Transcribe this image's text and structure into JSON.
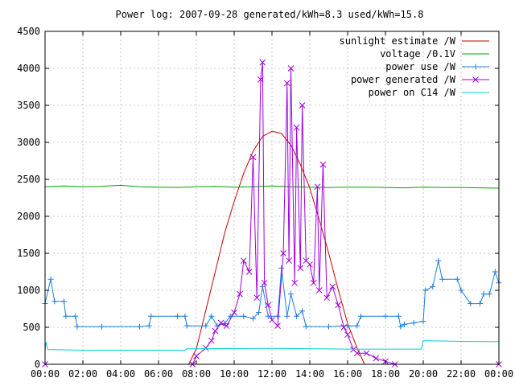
{
  "chart_data": {
    "type": "line",
    "title": "Power log: 2007-09-28 generated/kWh=8.3 used/kWh=15.8",
    "xlabel": "",
    "ylabel": "",
    "xlim": [
      0,
      24
    ],
    "ylim": [
      0,
      4500
    ],
    "x_ticks": [
      "00:00",
      "02:00",
      "04:00",
      "06:00",
      "08:00",
      "10:00",
      "12:00",
      "14:00",
      "16:00",
      "18:00",
      "20:00",
      "22:00",
      "00:00"
    ],
    "y_ticks": [
      0,
      500,
      1000,
      1500,
      2000,
      2500,
      3000,
      3500,
      4000,
      4500
    ],
    "grid": true,
    "legend_position": "top-right",
    "series": [
      {
        "name": "sunlight estimate /W",
        "color": "#cc0000",
        "marker": "none",
        "points": [
          [
            7.6,
            0
          ],
          [
            8.0,
            210
          ],
          [
            8.5,
            730
          ],
          [
            9.0,
            1250
          ],
          [
            9.5,
            1780
          ],
          [
            10.0,
            2200
          ],
          [
            10.5,
            2580
          ],
          [
            11.0,
            2880
          ],
          [
            11.5,
            3080
          ],
          [
            12.0,
            3150
          ],
          [
            12.5,
            3120
          ],
          [
            13.0,
            2960
          ],
          [
            13.5,
            2700
          ],
          [
            14.0,
            2380
          ],
          [
            14.5,
            1950
          ],
          [
            15.0,
            1500
          ],
          [
            15.5,
            1010
          ],
          [
            16.0,
            550
          ],
          [
            16.5,
            220
          ],
          [
            16.9,
            0
          ]
        ]
      },
      {
        "name": "voltage /0.1V",
        "color": "#00a000",
        "marker": "none",
        "points": [
          [
            0,
            2400
          ],
          [
            1,
            2410
          ],
          [
            2,
            2400
          ],
          [
            3,
            2405
          ],
          [
            4,
            2420
          ],
          [
            5,
            2400
          ],
          [
            6,
            2395
          ],
          [
            7,
            2390
          ],
          [
            8,
            2400
          ],
          [
            9,
            2405
          ],
          [
            10,
            2395
          ],
          [
            11,
            2400
          ],
          [
            12,
            2410
          ],
          [
            13,
            2400
          ],
          [
            14,
            2395
          ],
          [
            15,
            2390
          ],
          [
            16,
            2395
          ],
          [
            17,
            2395
          ],
          [
            18,
            2390
          ],
          [
            19,
            2385
          ],
          [
            20,
            2395
          ],
          [
            21,
            2390
          ],
          [
            22,
            2390
          ],
          [
            23,
            2385
          ],
          [
            24,
            2380
          ]
        ]
      },
      {
        "name": "power use /W",
        "color": "#1e7fe0",
        "marker": "plus",
        "points": [
          [
            0,
            820
          ],
          [
            0.3,
            1150
          ],
          [
            0.5,
            850
          ],
          [
            1.0,
            850
          ],
          [
            1.1,
            650
          ],
          [
            1.6,
            650
          ],
          [
            1.7,
            510
          ],
          [
            3.0,
            510
          ],
          [
            5.0,
            510
          ],
          [
            5.5,
            520
          ],
          [
            5.6,
            650
          ],
          [
            7.0,
            650
          ],
          [
            7.4,
            650
          ],
          [
            7.5,
            520
          ],
          [
            8.5,
            520
          ],
          [
            8.8,
            650
          ],
          [
            9.1,
            520
          ],
          [
            9.5,
            550
          ],
          [
            9.8,
            650
          ],
          [
            10.5,
            650
          ],
          [
            11.0,
            620
          ],
          [
            11.3,
            700
          ],
          [
            11.5,
            1050
          ],
          [
            11.8,
            650
          ],
          [
            12.3,
            650
          ],
          [
            12.5,
            1300
          ],
          [
            12.8,
            650
          ],
          [
            13.0,
            950
          ],
          [
            13.3,
            650
          ],
          [
            13.6,
            720
          ],
          [
            13.8,
            510
          ],
          [
            15.0,
            510
          ],
          [
            16.0,
            520
          ],
          [
            16.5,
            520
          ],
          [
            16.7,
            650
          ],
          [
            18.0,
            650
          ],
          [
            18.7,
            650
          ],
          [
            18.8,
            510
          ],
          [
            19.0,
            540
          ],
          [
            19.5,
            560
          ],
          [
            20.0,
            580
          ],
          [
            20.1,
            1000
          ],
          [
            20.5,
            1050
          ],
          [
            20.8,
            1400
          ],
          [
            21.0,
            1150
          ],
          [
            21.8,
            1150
          ],
          [
            22.0,
            1000
          ],
          [
            22.5,
            820
          ],
          [
            23.0,
            820
          ],
          [
            23.2,
            950
          ],
          [
            23.5,
            950
          ],
          [
            23.8,
            1250
          ],
          [
            24,
            1100
          ]
        ]
      },
      {
        "name": "power generated /W",
        "color": "#a000e0",
        "marker": "cross",
        "points": [
          [
            0,
            0
          ],
          [
            7.8,
            0
          ],
          [
            8.0,
            110
          ],
          [
            8.5,
            220
          ],
          [
            8.8,
            320
          ],
          [
            9.0,
            450
          ],
          [
            9.3,
            560
          ],
          [
            9.6,
            520
          ],
          [
            10.0,
            700
          ],
          [
            10.3,
            950
          ],
          [
            10.5,
            1400
          ],
          [
            10.8,
            1250
          ],
          [
            11.0,
            2800
          ],
          [
            11.2,
            900
          ],
          [
            11.4,
            3850
          ],
          [
            11.5,
            4080
          ],
          [
            11.6,
            1100
          ],
          [
            11.8,
            800
          ],
          [
            12.0,
            600
          ],
          [
            12.3,
            520
          ],
          [
            12.6,
            1500
          ],
          [
            12.8,
            3800
          ],
          [
            12.9,
            1400
          ],
          [
            13.0,
            4000
          ],
          [
            13.2,
            1100
          ],
          [
            13.3,
            3200
          ],
          [
            13.5,
            1300
          ],
          [
            13.6,
            3500
          ],
          [
            13.8,
            1400
          ],
          [
            14.0,
            1350
          ],
          [
            14.2,
            1100
          ],
          [
            14.4,
            2400
          ],
          [
            14.5,
            1000
          ],
          [
            14.7,
            2700
          ],
          [
            14.9,
            900
          ],
          [
            15.2,
            1050
          ],
          [
            15.5,
            800
          ],
          [
            15.8,
            500
          ],
          [
            16.0,
            400
          ],
          [
            16.3,
            200
          ],
          [
            16.5,
            150
          ],
          [
            17.0,
            150
          ],
          [
            17.5,
            80
          ],
          [
            18.0,
            40
          ],
          [
            18.5,
            0
          ],
          [
            24,
            0
          ]
        ]
      },
      {
        "name": "power on C14 /W",
        "color": "#00d0d0",
        "marker": "none",
        "points": [
          [
            0,
            180
          ],
          [
            0.05,
            300
          ],
          [
            0.15,
            200
          ],
          [
            2.0,
            190
          ],
          [
            5.0,
            190
          ],
          [
            7.4,
            190
          ],
          [
            7.5,
            210
          ],
          [
            12.0,
            215
          ],
          [
            16.0,
            205
          ],
          [
            17.0,
            205
          ],
          [
            19.9,
            205
          ],
          [
            20.0,
            320
          ],
          [
            22.0,
            310
          ],
          [
            24,
            305
          ]
        ]
      }
    ]
  }
}
